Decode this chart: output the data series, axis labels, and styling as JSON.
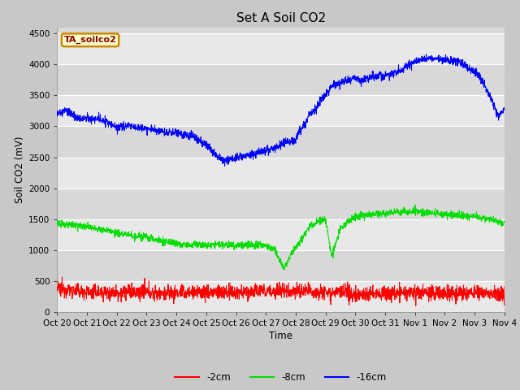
{
  "title": "Set A Soil CO2",
  "xlabel": "Time",
  "ylabel": "Soil CO2 (mV)",
  "ylim": [
    0,
    4600
  ],
  "yticks": [
    0,
    500,
    1000,
    1500,
    2000,
    2500,
    3000,
    3500,
    4000,
    4500
  ],
  "fig_bg_color": "#c8c8c8",
  "plot_bg_color": "#d8d8d8",
  "band_color": "#e8e8e8",
  "legend_box_label": "TA_soilco2",
  "legend_box_bg": "#ffffcc",
  "legend_box_border": "#cc8800",
  "series": [
    {
      "label": "-2cm",
      "color": "#ff0000"
    },
    {
      "label": "-8cm",
      "color": "#00dd00"
    },
    {
      "label": "-16cm",
      "color": "#0000ff"
    }
  ],
  "xtick_labels": [
    "Oct 20",
    "Oct 21",
    "Oct 22",
    "Oct 23",
    "Oct 24",
    "Oct 25",
    "Oct 26",
    "Oct 27",
    "Oct 28",
    "Oct 29",
    "Oct 30",
    "Oct 31",
    "Nov 1",
    "Nov 2",
    "Nov 3",
    "Nov 4"
  ],
  "n_points": 2000,
  "title_fontsize": 11,
  "tick_fontsize": 7.5
}
